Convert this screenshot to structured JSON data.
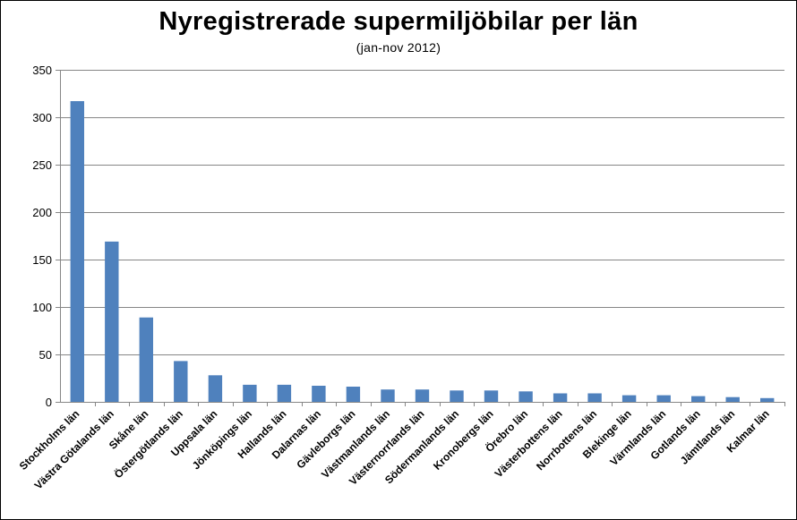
{
  "chart_data": {
    "type": "bar",
    "title": "Nyregistrerade supermiljöbilar per län",
    "subtitle": "(jan-nov 2012)",
    "xlabel": "",
    "ylabel": "",
    "ylim": [
      0,
      350
    ],
    "yticks": [
      0,
      50,
      100,
      150,
      200,
      250,
      300,
      350
    ],
    "grid": true,
    "legend": "none",
    "bar_color": "#4F81BD",
    "categories": [
      "Stockholms län",
      "Västra Götalands län",
      "Skåne län",
      "Östergötlands län",
      "Uppsala län",
      "Jönköpings län",
      "Hallands län",
      "Dalarnas län",
      "Gävleborgs län",
      "Västmanlands län",
      "Västernorrlands län",
      "Södermanlands län",
      "Kronobergs län",
      "Örebro län",
      "Västerbottens län",
      "Norrbottens län",
      "Blekinge län",
      "Värmlands län",
      "Gotlands län",
      "Jämtlands län",
      "Kalmar län"
    ],
    "values": [
      317,
      169,
      89,
      43,
      28,
      18,
      18,
      17,
      16,
      13,
      13,
      12,
      12,
      11,
      9,
      9,
      7,
      7,
      6,
      5,
      4
    ]
  }
}
